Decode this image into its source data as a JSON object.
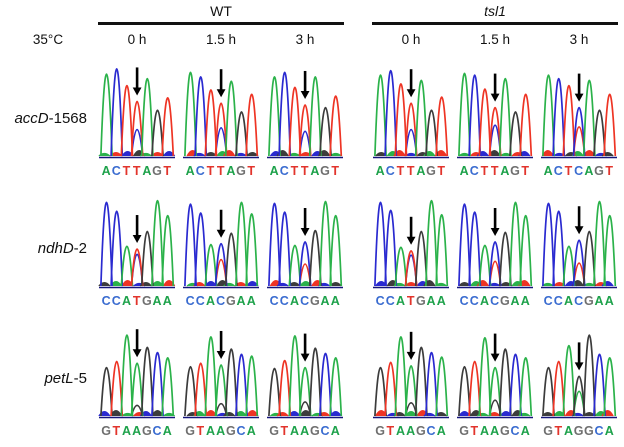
{
  "figure": {
    "temperature_label": "35°C",
    "groups": [
      {
        "label": "WT",
        "italic": false,
        "timepoints": [
          "0 h",
          "1.5 h",
          "3 h"
        ]
      },
      {
        "label": "tsl1",
        "italic": true,
        "timepoints": [
          "0 h",
          "1.5 h",
          "3 h"
        ]
      }
    ],
    "rows": [
      {
        "gene": "accD",
        "suffix": "-1568",
        "cells": [
          {
            "group": "WT",
            "timepoint": "0 h",
            "sequence": "ACTTAGT",
            "arrow_index": 3,
            "peaks": [
              [
                0.93
              ],
              [
                0.99
              ],
              [
                0.8
              ],
              [
                0.62,
                "C",
                0.3
              ],
              [
                0.88
              ],
              [
                0.52
              ],
              [
                0.66
              ]
            ]
          },
          {
            "group": "WT",
            "timepoint": "1.5 h",
            "sequence": "ACTTAGT",
            "arrow_index": 3,
            "peaks": [
              [
                0.95
              ],
              [
                0.9
              ],
              [
                0.75
              ],
              [
                0.6,
                "C",
                0.32
              ],
              [
                0.85
              ],
              [
                0.5
              ],
              [
                0.7
              ]
            ]
          },
          {
            "group": "WT",
            "timepoint": "3 h",
            "sequence": "ACTTAGT",
            "arrow_index": 3,
            "peaks": [
              [
                0.9
              ],
              [
                0.95
              ],
              [
                0.78
              ],
              [
                0.58,
                "C",
                0.28
              ],
              [
                0.9
              ],
              [
                0.55
              ],
              [
                0.68
              ]
            ]
          },
          {
            "group": "tsl1",
            "timepoint": "0 h",
            "sequence": "ACTTAGT",
            "arrow_index": 3,
            "peaks": [
              [
                0.92
              ],
              [
                0.97
              ],
              [
                0.82
              ],
              [
                0.6,
                "C",
                0.3
              ],
              [
                0.86
              ],
              [
                0.52
              ],
              [
                0.67
              ]
            ]
          },
          {
            "group": "tsl1",
            "timepoint": "1.5 h",
            "sequence": "ACTTAGT",
            "arrow_index": 3,
            "peaks": [
              [
                0.94
              ],
              [
                0.92
              ],
              [
                0.76
              ],
              [
                0.55,
                "C",
                0.35
              ],
              [
                0.88
              ],
              [
                0.5
              ],
              [
                0.7
              ]
            ]
          },
          {
            "group": "tsl1",
            "timepoint": "3 h",
            "sequence": "ACTCAGT",
            "arrow_index": 3,
            "peaks": [
              [
                0.92
              ],
              [
                0.88
              ],
              [
                0.8
              ],
              [
                0.55,
                "T",
                0.33
              ],
              [
                0.86
              ],
              [
                0.52
              ],
              [
                0.7
              ]
            ]
          }
        ]
      },
      {
        "gene": "ndhD",
        "suffix": "-2",
        "cells": [
          {
            "group": "WT",
            "timepoint": "0 h",
            "sequence": "CCATGAA",
            "arrow_index": 3,
            "peaks": [
              [
                0.95
              ],
              [
                0.85
              ],
              [
                0.45
              ],
              [
                0.42,
                "C",
                0.36
              ],
              [
                0.62
              ],
              [
                0.97
              ],
              [
                0.8
              ]
            ]
          },
          {
            "group": "WT",
            "timepoint": "1.5 h",
            "sequence": "CCACGAA",
            "arrow_index": 3,
            "peaks": [
              [
                0.93
              ],
              [
                0.83
              ],
              [
                0.47
              ],
              [
                0.48,
                "T",
                0.3
              ],
              [
                0.6
              ],
              [
                0.95
              ],
              [
                0.82
              ]
            ]
          },
          {
            "group": "WT",
            "timepoint": "3 h",
            "sequence": "CCACGAA",
            "arrow_index": 3,
            "peaks": [
              [
                0.94
              ],
              [
                0.84
              ],
              [
                0.46
              ],
              [
                0.5,
                "T",
                0.25
              ],
              [
                0.63
              ],
              [
                0.96
              ],
              [
                0.8
              ]
            ]
          },
          {
            "group": "tsl1",
            "timepoint": "0 h",
            "sequence": "CCATGAA",
            "arrow_index": 3,
            "peaks": [
              [
                0.95
              ],
              [
                0.86
              ],
              [
                0.44
              ],
              [
                0.4,
                "C",
                0.35
              ],
              [
                0.62
              ],
              [
                0.97
              ],
              [
                0.81
              ]
            ]
          },
          {
            "group": "tsl1",
            "timepoint": "1.5 h",
            "sequence": "CCACGAA",
            "arrow_index": 3,
            "peaks": [
              [
                0.93
              ],
              [
                0.84
              ],
              [
                0.46
              ],
              [
                0.5,
                "T",
                0.28
              ],
              [
                0.61
              ],
              [
                0.95
              ],
              [
                0.8
              ]
            ]
          },
          {
            "group": "tsl1",
            "timepoint": "3 h",
            "sequence": "CCACGAA",
            "arrow_index": 3,
            "peaks": [
              [
                0.94
              ],
              [
                0.85
              ],
              [
                0.45
              ],
              [
                0.52,
                "T",
                0.26
              ],
              [
                0.62
              ],
              [
                0.96
              ],
              [
                0.8
              ]
            ]
          }
        ]
      },
      {
        "gene": "petL",
        "suffix": "-5",
        "cells": [
          {
            "group": "WT",
            "timepoint": "0 h",
            "sequence": "GTAAGCA",
            "arrow_index": 3,
            "peaks": [
              [
                0.55
              ],
              [
                0.62
              ],
              [
                0.92
              ],
              [
                0.6,
                "G",
                0.12
              ],
              [
                0.78
              ],
              [
                0.72
              ],
              [
                0.66
              ]
            ]
          },
          {
            "group": "WT",
            "timepoint": "1.5 h",
            "sequence": "GTAAGCA",
            "arrow_index": 3,
            "peaks": [
              [
                0.56
              ],
              [
                0.6
              ],
              [
                0.9
              ],
              [
                0.58,
                "G",
                0.14
              ],
              [
                0.76
              ],
              [
                0.7
              ],
              [
                0.68
              ]
            ]
          },
          {
            "group": "WT",
            "timepoint": "3 h",
            "sequence": "GTAAGCA",
            "arrow_index": 3,
            "peaks": [
              [
                0.54
              ],
              [
                0.63
              ],
              [
                0.91
              ],
              [
                0.55,
                "G",
                0.16
              ],
              [
                0.77
              ],
              [
                0.71
              ],
              [
                0.66
              ]
            ]
          },
          {
            "group": "tsl1",
            "timepoint": "0 h",
            "sequence": "GTAAGCA",
            "arrow_index": 3,
            "peaks": [
              [
                0.55
              ],
              [
                0.61
              ],
              [
                0.9
              ],
              [
                0.57,
                "G",
                0.15
              ],
              [
                0.78
              ],
              [
                0.72
              ],
              [
                0.67
              ]
            ]
          },
          {
            "group": "tsl1",
            "timepoint": "1.5 h",
            "sequence": "GTAAGCA",
            "arrow_index": 3,
            "peaks": [
              [
                0.56
              ],
              [
                0.62
              ],
              [
                0.89
              ],
              [
                0.55,
                "G",
                0.18
              ],
              [
                0.76
              ],
              [
                0.7
              ],
              [
                0.66
              ]
            ]
          },
          {
            "group": "tsl1",
            "timepoint": "3 h",
            "sequence": "GTAGGCA",
            "arrow_index": 3,
            "peaks": [
              [
                0.55
              ],
              [
                0.62
              ],
              [
                0.8
              ],
              [
                0.45,
                "A",
                0.28
              ],
              [
                0.92
              ],
              [
                0.7
              ],
              [
                0.66
              ]
            ]
          }
        ]
      }
    ]
  },
  "colors": {
    "trace": {
      "A": "#2bb24a",
      "C": "#2a2ad0",
      "G": "#3c3c3c",
      "T": "#ee3424"
    },
    "letter": {
      "A": "#1ea24b",
      "C": "#3a6cd0",
      "G": "#6f6f6f",
      "T": "#e2342c"
    },
    "arrow": "#000000",
    "baseline": "#15157a",
    "header_bar": "#111111"
  },
  "chart_data": {
    "type": "line",
    "title": "Sanger sequencing chromatograms of chloroplast RNA editing sites at 35°C (WT vs tsl1, 0/1.5/3 h)",
    "conditions": [
      "WT 0 h",
      "WT 1.5 h",
      "WT 3 h",
      "tsl1 0 h",
      "tsl1 1.5 h",
      "tsl1 3 h"
    ],
    "edited_position_in_window": 4,
    "sites": [
      {
        "site": "accD-1568",
        "sequences": [
          "ACTTAGT",
          "ACTTAGT",
          "ACTTAGT",
          "ACTTAGT",
          "ACTTAGT",
          "ACTCAGT"
        ]
      },
      {
        "site": "ndhD-2",
        "sequences": [
          "CCATGAA",
          "CCACGAA",
          "CCACGAA",
          "CCATGAA",
          "CCACGAA",
          "CCACGAA"
        ]
      },
      {
        "site": "petL-5",
        "sequences": [
          "GTAAGCA",
          "GTAAGCA",
          "GTAAGCA",
          "GTAAGCA",
          "GTAAGCA",
          "GTAGGCA"
        ]
      }
    ],
    "legend_base_colors": {
      "A": "green",
      "C": "blue",
      "G": "black",
      "T": "red"
    }
  }
}
